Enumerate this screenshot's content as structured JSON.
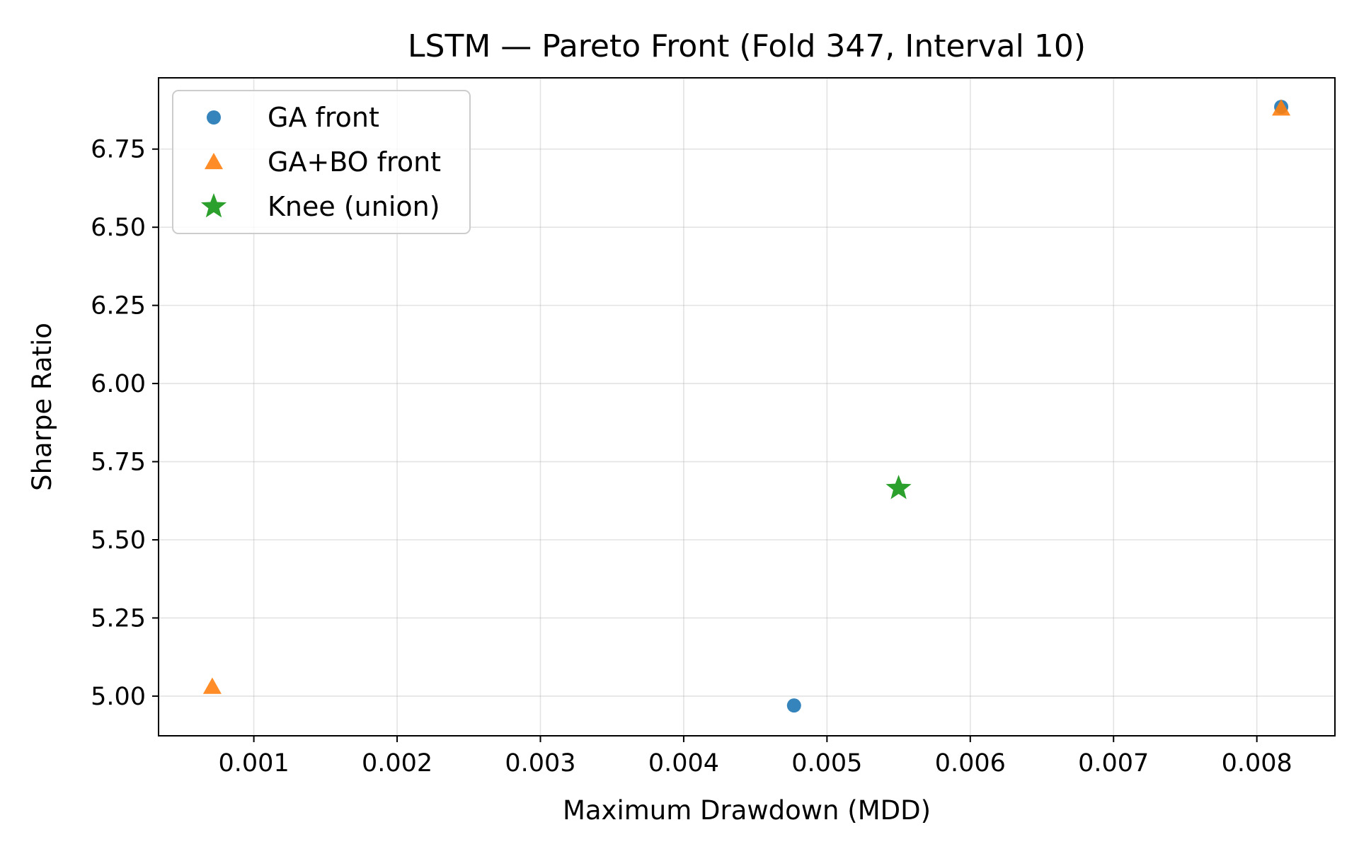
{
  "chart_data": {
    "type": "scatter",
    "title": "LSTM — Pareto Front (Fold 347, Interval 10)",
    "xlabel": "Maximum Drawdown (MDD)",
    "ylabel": "Sharpe Ratio",
    "xlim": [
      0.000335,
      0.008545
    ],
    "ylim": [
      4.873,
      6.978
    ],
    "xticks": [
      0.001,
      0.002,
      0.003,
      0.004,
      0.005,
      0.006,
      0.007,
      0.008
    ],
    "xtick_labels": [
      "0.001",
      "0.002",
      "0.003",
      "0.004",
      "0.005",
      "0.006",
      "0.007",
      "0.008"
    ],
    "yticks": [
      5.0,
      5.25,
      5.5,
      5.75,
      6.0,
      6.25,
      6.5,
      6.75
    ],
    "ytick_labels": [
      "5.00",
      "5.25",
      "5.50",
      "5.75",
      "6.00",
      "6.25",
      "6.50",
      "6.75"
    ],
    "grid": true,
    "legend_position": "top-left",
    "series": [
      {
        "name": "GA front",
        "marker": "circle",
        "color": "#1f77b4",
        "points": [
          {
            "x": 0.00477,
            "y": 4.97
          },
          {
            "x": 0.00817,
            "y": 6.885
          }
        ]
      },
      {
        "name": "GA+BO front",
        "marker": "triangle",
        "color": "#ff7f0e",
        "points": [
          {
            "x": 0.00071,
            "y": 5.03
          },
          {
            "x": 0.00817,
            "y": 6.88
          }
        ]
      },
      {
        "name": "Knee (union)",
        "marker": "star",
        "color": "#2ca02c",
        "points": [
          {
            "x": 0.0055,
            "y": 5.665
          }
        ]
      }
    ]
  }
}
